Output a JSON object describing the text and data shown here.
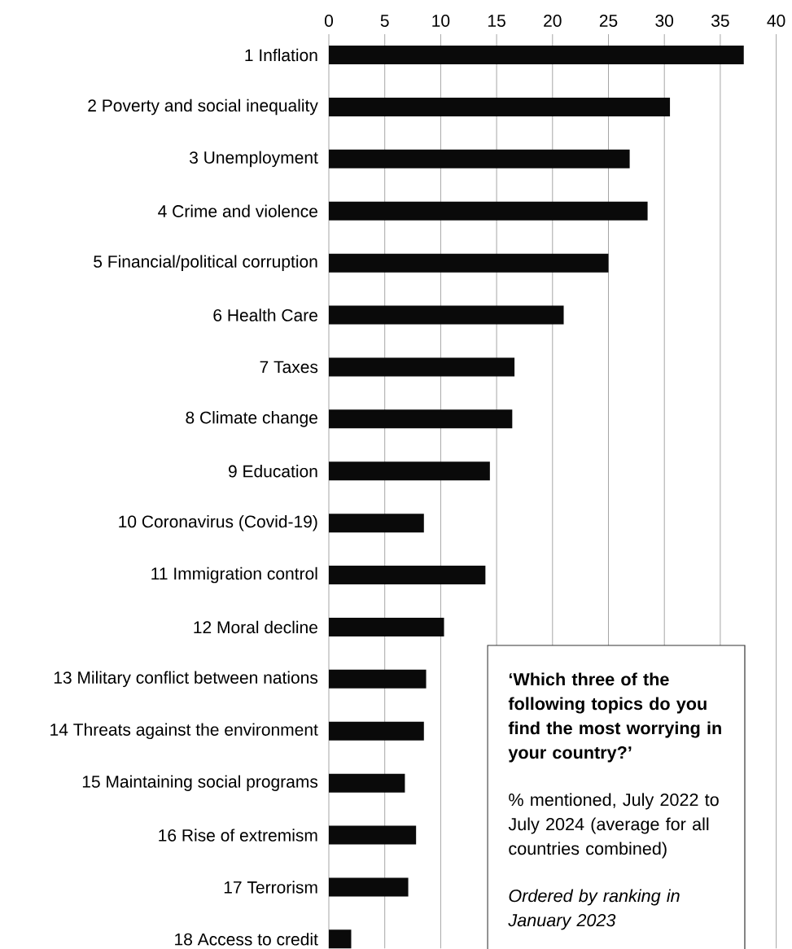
{
  "chart_data": {
    "type": "bar",
    "orientation": "horizontal",
    "categories": [
      "1 Inflation",
      "2 Poverty and social inequality",
      "3 Unemployment",
      "4 Crime and violence",
      "5 Financial/political corruption",
      "6 Health Care",
      "7 Taxes",
      "8 Climate change",
      "9 Education",
      "10 Coronavirus (Covid-19)",
      "11 Immigration control",
      "12 Moral decline",
      "13 Military conflict between nations",
      "14 Threats against the environment",
      "15 Maintaining social programs",
      "16 Rise of extremism",
      "17 Terrorism",
      "18 Access to credit"
    ],
    "values": [
      37.1,
      30.5,
      26.9,
      28.5,
      25.0,
      21.0,
      16.6,
      16.4,
      14.4,
      8.5,
      14.0,
      10.3,
      8.7,
      8.5,
      6.8,
      7.8,
      7.1,
      2.0
    ],
    "color": "#0a0a0a",
    "xlim": [
      0,
      40
    ],
    "xticks": [
      0,
      5,
      10,
      15,
      20,
      25,
      30,
      35,
      40
    ],
    "grid": "x",
    "annotations": [
      "‘Which three of the following topics do you find the most worrying in your country?’",
      "% mentioned, July 2022 to July 2024 (average for all countries combined)",
      "Ordered by ranking in January 2023"
    ]
  }
}
